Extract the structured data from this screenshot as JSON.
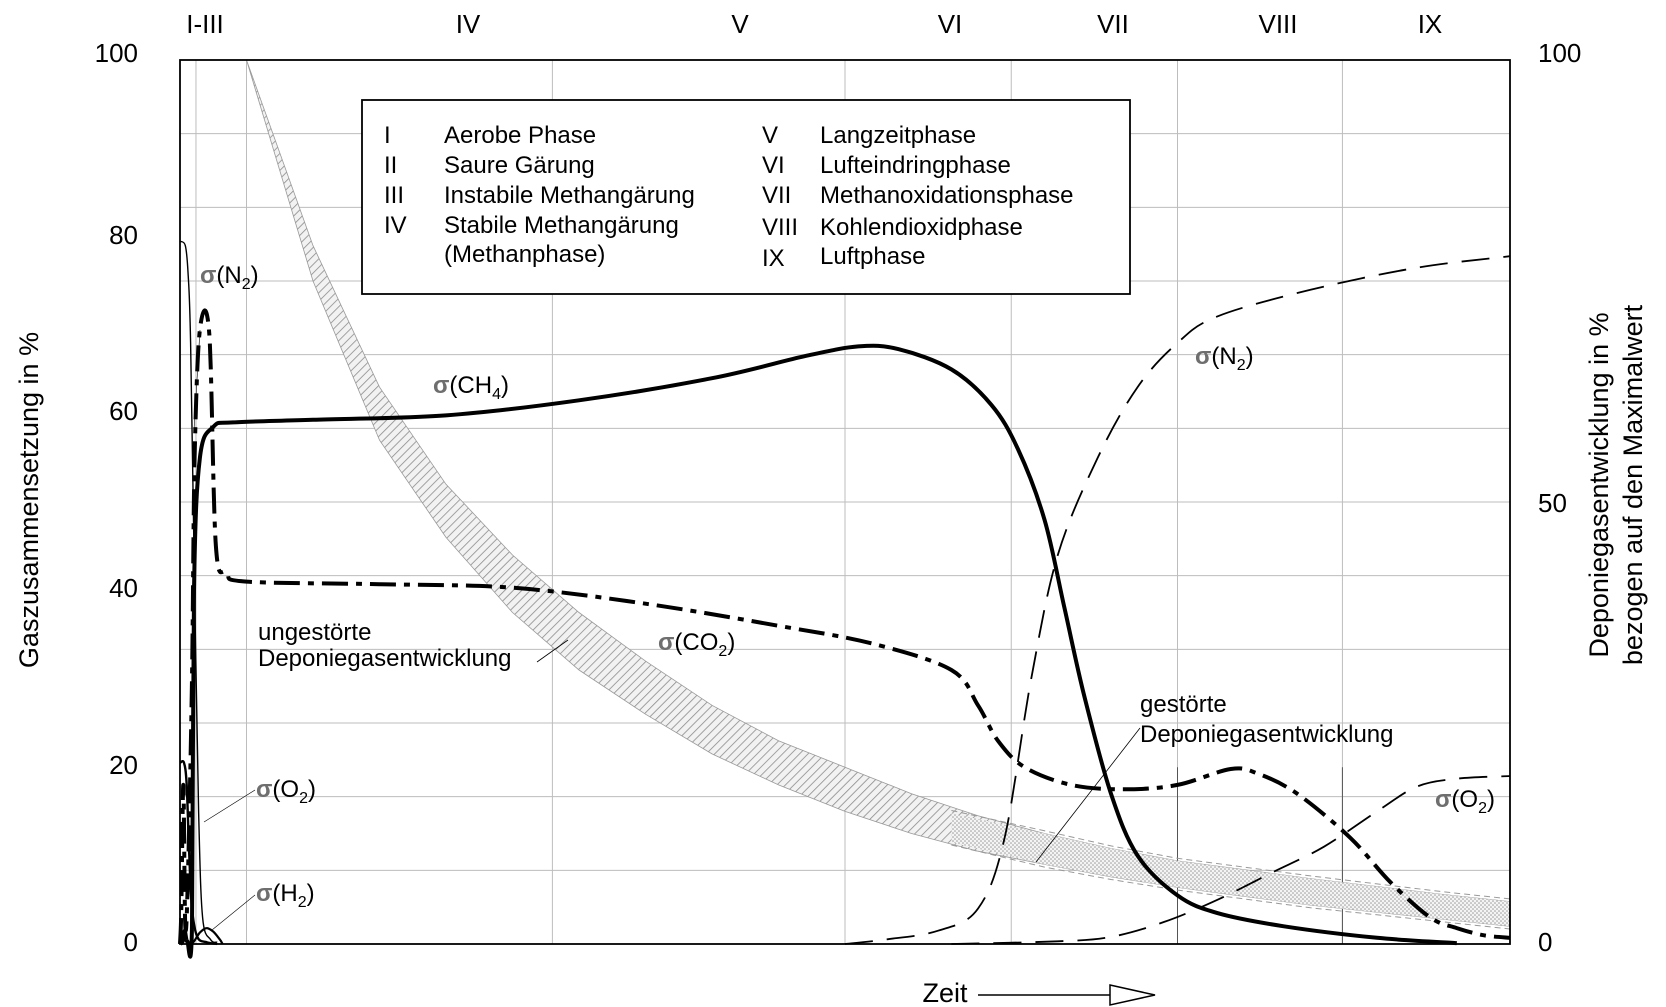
{
  "chart_data": {
    "type": "line",
    "title": "",
    "xlabel": "Zeit",
    "ylabel_left": "Gaszusammensetzung in %",
    "ylabel_right_line1": "Deponiegasentwicklung in %",
    "ylabel_right_line2": "bezogen auf den Maximalwert",
    "ylim_left": [
      0,
      100
    ],
    "ylim_right": [
      0,
      100
    ],
    "y_ticks_left": [
      "0",
      "20",
      "40",
      "60",
      "80",
      "100"
    ],
    "y_ticks_right": [
      "0",
      "50",
      "100"
    ],
    "grid": true,
    "phase_labels": [
      "I-III",
      "IV",
      "V",
      "VI",
      "VII",
      "VIII",
      "IX"
    ],
    "legend": {
      "left": [
        {
          "num": "I",
          "text": "Aerobe Phase"
        },
        {
          "num": "II",
          "text": "Saure Gärung"
        },
        {
          "num": "III",
          "text": "Instabile Methangärung"
        },
        {
          "num": "IV",
          "text": "Stabile Methangärung"
        },
        {
          "num": "",
          "text": "(Methanphase)"
        }
      ],
      "right": [
        {
          "num": "V",
          "text": "Langzeitphase"
        },
        {
          "num": "VI",
          "text": "Lufteindringphase"
        },
        {
          "num": "VII",
          "text": "Methanoxidationsphase"
        },
        {
          "num": "VIII",
          "text": "Kohlendioxidphase"
        },
        {
          "num": "IX",
          "text": "Luftphase"
        }
      ]
    },
    "series_labels": {
      "ch4": {
        "sym": "σ",
        "main": "(CH",
        "sub": "4",
        "end": ")"
      },
      "co2": {
        "sym": "σ",
        "main": "(CO",
        "sub": "2",
        "end": ")"
      },
      "n2_early": {
        "sym": "σ",
        "main": "(N",
        "sub": "2",
        "end": ")"
      },
      "n2_late": {
        "sym": "σ",
        "main": "(N",
        "sub": "2",
        "end": ")"
      },
      "o2_early": {
        "sym": "σ",
        "main": "(O",
        "sub": "2",
        "end": ")"
      },
      "o2_late": {
        "sym": "σ",
        "main": "(O",
        "sub": "2",
        "end": ")"
      },
      "h2": {
        "sym": "σ",
        "main": "(H",
        "sub": "2",
        "end": ")"
      }
    },
    "annotations": {
      "undisturbed_line1": "ungestörte",
      "undisturbed_line2": "Deponiegasentwicklung",
      "disturbed_line1": "gestörte",
      "disturbed_line2": "Deponiegasentwicklung"
    },
    "series": {
      "ch4": [
        [
          0,
          0
        ],
        [
          0.2,
          0.3
        ],
        [
          0.35,
          1.5
        ],
        [
          0.55,
          0.3
        ],
        [
          0.9,
          2
        ],
        [
          1.05,
          40
        ],
        [
          1.5,
          55
        ],
        [
          2.5,
          58.5
        ],
        [
          4,
          59
        ],
        [
          10,
          59.3
        ],
        [
          20,
          59.8
        ],
        [
          30,
          61.5
        ],
        [
          40,
          64
        ],
        [
          47,
          66.5
        ],
        [
          51,
          67.6
        ],
        [
          54,
          67.3
        ],
        [
          58,
          65
        ],
        [
          61,
          61
        ],
        [
          63,
          56
        ],
        [
          65,
          48
        ],
        [
          66.5,
          38
        ],
        [
          68,
          28
        ],
        [
          70,
          17
        ],
        [
          72,
          10
        ],
        [
          75,
          5.5
        ],
        [
          78,
          3.5
        ],
        [
          83,
          2
        ],
        [
          90,
          0.7
        ],
        [
          96,
          0.1
        ]
      ],
      "co2": [
        [
          0,
          0
        ],
        [
          0.1,
          4
        ],
        [
          0.25,
          18
        ],
        [
          0.4,
          2
        ],
        [
          0.6,
          8
        ],
        [
          0.9,
          30
        ],
        [
          1.1,
          55
        ],
        [
          1.5,
          69.5
        ],
        [
          2.2,
          69
        ],
        [
          2.7,
          45
        ],
        [
          3.5,
          42
        ],
        [
          5,
          41
        ],
        [
          15,
          40.7
        ],
        [
          25,
          40.3
        ],
        [
          35,
          38.5
        ],
        [
          45,
          36
        ],
        [
          52,
          34
        ],
        [
          58,
          31
        ],
        [
          60,
          27
        ],
        [
          61.5,
          23
        ],
        [
          63.5,
          20
        ],
        [
          67,
          18
        ],
        [
          71,
          17.5
        ],
        [
          75,
          18
        ],
        [
          79,
          19.8
        ],
        [
          81,
          19.3
        ],
        [
          84,
          17
        ],
        [
          88,
          12
        ],
        [
          91,
          7
        ],
        [
          94,
          3
        ],
        [
          96,
          1.8
        ],
        [
          98,
          1
        ],
        [
          100,
          0.7
        ]
      ],
      "n2_early": [
        [
          0,
          79.5
        ],
        [
          0.4,
          79
        ],
        [
          0.6,
          76
        ],
        [
          0.8,
          68
        ],
        [
          1.1,
          40
        ],
        [
          1.4,
          15
        ],
        [
          1.7,
          3
        ],
        [
          2.3,
          0.5
        ],
        [
          2.8,
          0.2
        ]
      ],
      "n2_late": [
        [
          50,
          0
        ],
        [
          53,
          0.5
        ],
        [
          57,
          1.5
        ],
        [
          60,
          4
        ],
        [
          62,
          12
        ],
        [
          64,
          30
        ],
        [
          66,
          44
        ],
        [
          69,
          55
        ],
        [
          72,
          63
        ],
        [
          75,
          68
        ],
        [
          78,
          71
        ],
        [
          85,
          74
        ],
        [
          93,
          76.5
        ],
        [
          100,
          77.8
        ]
      ],
      "o2_early": [
        [
          0,
          20.5
        ],
        [
          0.3,
          20.5
        ],
        [
          0.5,
          18
        ],
        [
          0.7,
          10
        ],
        [
          0.9,
          4
        ],
        [
          1.3,
          0.8
        ],
        [
          2,
          0.2
        ],
        [
          2.8,
          0
        ]
      ],
      "o2_late": [
        [
          58,
          0
        ],
        [
          66,
          0.3
        ],
        [
          70,
          0.8
        ],
        [
          74,
          2.5
        ],
        [
          78,
          5
        ],
        [
          82,
          8
        ],
        [
          86,
          11
        ],
        [
          90,
          15
        ],
        [
          93,
          17.8
        ],
        [
          96,
          18.7
        ],
        [
          100,
          19
        ]
      ],
      "h2": [
        [
          0.6,
          0
        ],
        [
          1,
          0.2
        ],
        [
          1.5,
          1.3
        ],
        [
          2,
          1.8
        ],
        [
          2.5,
          1.4
        ],
        [
          3,
          0.5
        ],
        [
          3.2,
          0
        ]
      ]
    },
    "band_undisturbed": {
      "x": [
        5,
        10,
        15,
        20,
        25,
        30,
        35,
        40,
        45,
        50,
        55,
        60,
        65,
        70,
        75,
        80,
        85,
        90,
        95,
        100
      ],
      "upper": [
        100,
        79,
        63,
        52,
        44,
        37.5,
        32,
        27,
        23,
        20,
        17,
        14.5,
        12.5,
        10.8,
        9.4,
        8.4,
        7.4,
        6.5,
        5.6,
        4.8
      ],
      "lower": [
        100,
        75,
        57,
        46,
        37.5,
        31,
        26,
        21.5,
        18,
        15,
        12.5,
        10.5,
        9,
        7.6,
        6.4,
        5.4,
        4.4,
        3.6,
        2.8,
        2
      ]
    },
    "band_disturbed": {
      "x": [
        58,
        65,
        70,
        75,
        80,
        85,
        90,
        95,
        100
      ],
      "upper": [
        14.8,
        12.5,
        10.8,
        9.4,
        8.4,
        7.4,
        6.5,
        5.6,
        4.8
      ],
      "lower": [
        11.5,
        9,
        7.6,
        6.4,
        5.4,
        4.4,
        3.6,
        2.8,
        2
      ]
    }
  }
}
